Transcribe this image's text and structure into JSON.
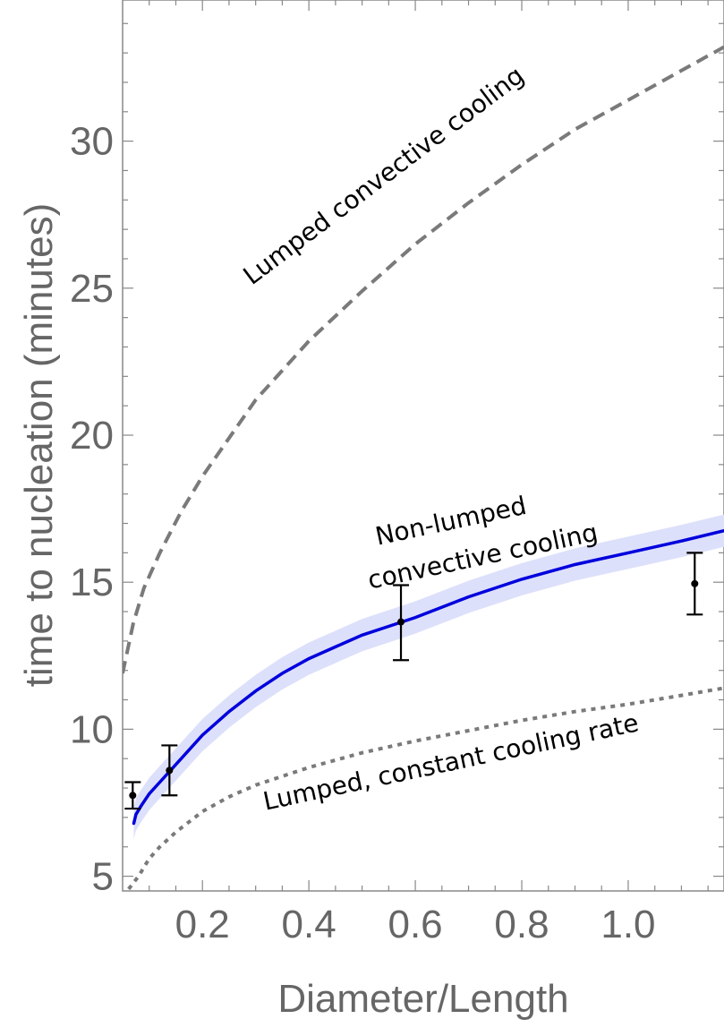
{
  "chart_data": {
    "type": "line",
    "xlabel": "Diameter/Length",
    "ylabel": "time to nucleation (minutes)",
    "xlim": [
      0.05,
      1.18
    ],
    "ylim": [
      4.5,
      34.8
    ],
    "x_ticks": [
      0.2,
      0.4,
      0.6,
      0.8,
      1.0
    ],
    "x_tick_labels": [
      "0.2",
      "0.4",
      "0.6",
      "0.8",
      "1.0"
    ],
    "y_ticks": [
      5,
      10,
      15,
      20,
      25,
      30
    ],
    "y_tick_labels": [
      "5",
      "10",
      "15",
      "20",
      "25",
      "30"
    ],
    "grid": false,
    "series": [
      {
        "style": "dashed",
        "color": "#7a7a7a",
        "x": [
          0.05,
          0.07,
          0.09,
          0.12,
          0.16,
          0.2,
          0.25,
          0.3,
          0.4,
          0.5,
          0.6,
          0.7,
          0.8,
          0.9,
          1.0,
          1.1,
          1.18
        ],
        "y": [
          11.9,
          13.6,
          14.8,
          16.0,
          17.4,
          18.6,
          19.9,
          21.2,
          23.2,
          24.9,
          26.5,
          27.9,
          29.2,
          30.4,
          31.4,
          32.4,
          33.2
        ]
      },
      {
        "style": "solid",
        "color": "#0000dd",
        "band_color": "#dde0fa",
        "band_halfwidth": 0.55,
        "x": [
          0.071,
          0.075,
          0.085,
          0.1,
          0.12,
          0.15,
          0.2,
          0.25,
          0.3,
          0.35,
          0.4,
          0.45,
          0.5,
          0.55,
          0.6,
          0.7,
          0.8,
          0.9,
          1.0,
          1.1,
          1.18
        ],
        "y": [
          6.8,
          7.1,
          7.4,
          7.8,
          8.2,
          8.8,
          9.8,
          10.6,
          11.3,
          11.9,
          12.4,
          12.8,
          13.2,
          13.5,
          13.8,
          14.5,
          15.1,
          15.6,
          16.0,
          16.4,
          16.75
        ]
      },
      {
        "style": "dotted",
        "color": "#7a7a7a",
        "x": [
          0.05,
          0.08,
          0.1,
          0.12,
          0.15,
          0.2,
          0.25,
          0.3,
          0.4,
          0.5,
          0.6,
          0.7,
          0.8,
          0.9,
          1.0,
          1.1,
          1.18
        ],
        "y": [
          4.3,
          5.0,
          5.6,
          6.0,
          6.5,
          7.2,
          7.7,
          8.1,
          8.7,
          9.2,
          9.6,
          9.95,
          10.3,
          10.6,
          10.85,
          11.15,
          11.4
        ]
      }
    ],
    "points": [
      {
        "x": 0.069,
        "y": 7.75,
        "ylow": 7.3,
        "yhigh": 8.2
      },
      {
        "x": 0.138,
        "y": 8.6,
        "ylow": 7.75,
        "yhigh": 9.45
      },
      {
        "x": 0.573,
        "y": 13.65,
        "ylow": 12.35,
        "yhigh": 14.9
      },
      {
        "x": 1.125,
        "y": 14.95,
        "ylow": 13.9,
        "yhigh": 16.0
      }
    ],
    "annotations": [
      {
        "text": "Lumped convective cooling",
        "x": 0.55,
        "y": 28.6,
        "angle": -37
      },
      {
        "text": "Non-lumped",
        "x": 0.67,
        "y": 16.8,
        "angle": -12
      },
      {
        "text": "convective cooling",
        "x": 0.73,
        "y": 15.6,
        "angle": -12
      },
      {
        "text": "Lumped, constant cooling rate",
        "x": 0.67,
        "y": 8.6,
        "angle": -12
      }
    ]
  }
}
